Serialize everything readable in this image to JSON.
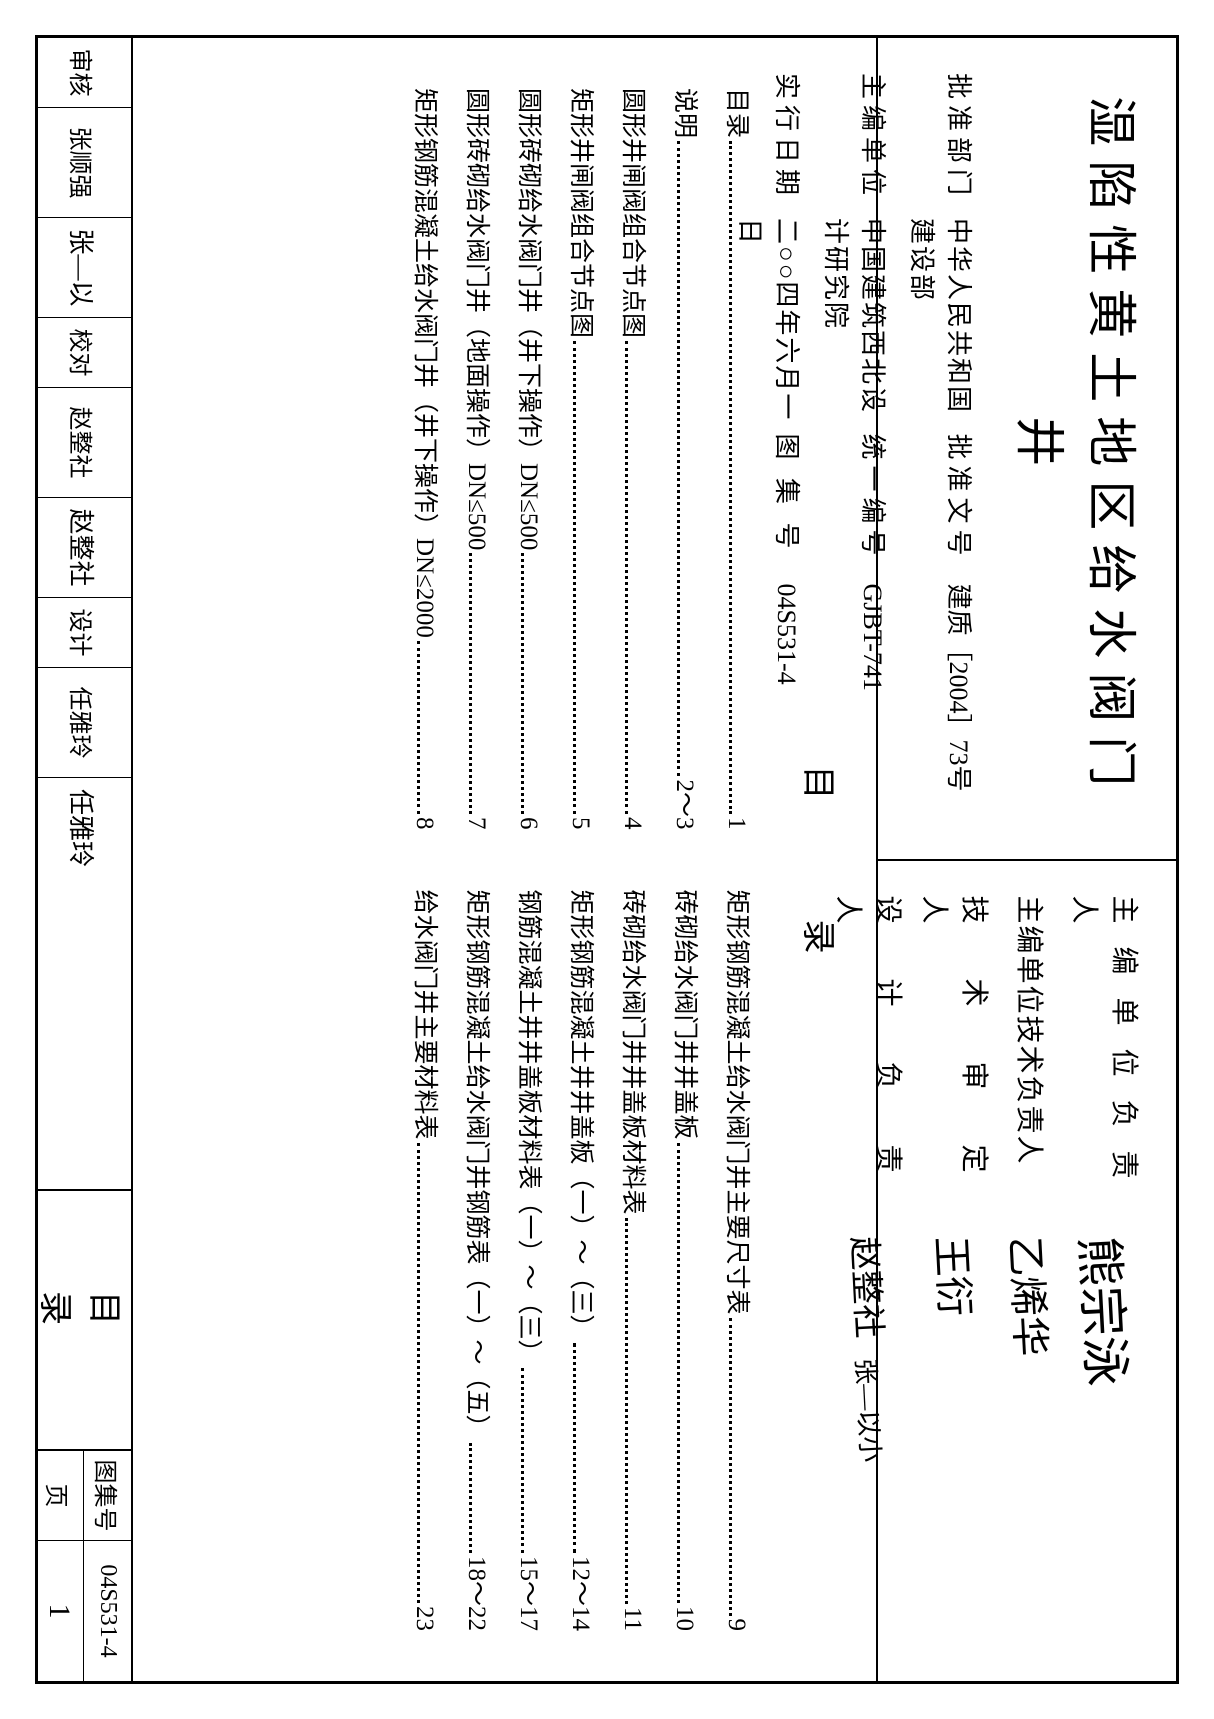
{
  "title": "湿陷性黄土地区给水阀门井",
  "info": {
    "approve_dept_label": "批准部门",
    "approve_dept": "中华人民共和国建设部",
    "approve_doc_label": "批准文号",
    "approve_doc": "建质［2004］73号",
    "editor_unit_label": "主编单位",
    "editor_unit": "中国建筑西北设计研究院",
    "unified_no_label": "统一编号",
    "unified_no": "GJBT-741",
    "effective_date_label": "实行日期",
    "effective_date": "二○○四年六月一日",
    "atlas_no_label": "图 集 号",
    "atlas_no": "04S531-4"
  },
  "signers": {
    "r1_label": "主 编 单 位 负 责 人",
    "r1_sig": "熊宗泳",
    "r2_label": "主编单位技术负责人",
    "r2_sig": "乙烯华",
    "r3_label": "技 术 审 定 人",
    "r3_sig": "王衍",
    "r4_label": "设 计 负 责 人",
    "r4_sig": "赵整社",
    "r4_sig2": "张—以小"
  },
  "toc_heading": "目录",
  "toc_left": [
    {
      "label": "目录",
      "page": "1"
    },
    {
      "label": "说明",
      "page": "2～3"
    },
    {
      "label": "圆形井闸阀组合节点图",
      "page": "4"
    },
    {
      "label": "矩形井闸阀组合节点图",
      "page": "5"
    },
    {
      "label": "圆形砖砌给水阀门井（井下操作）DN≤500",
      "page": "6"
    },
    {
      "label": "圆形砖砌给水阀门井（地面操作）DN≤500",
      "page": "7"
    },
    {
      "label": "矩形钢筋混凝土给水阀门井（井下操作）DN≤2000",
      "page": "8"
    }
  ],
  "toc_right": [
    {
      "label": "矩形钢筋混凝土给水阀门井主要尺寸表",
      "page": "9"
    },
    {
      "label": "砖砌给水阀门井井盖板",
      "page": "10"
    },
    {
      "label": "砖砌给水阀门井井盖板材料表",
      "page": "11"
    },
    {
      "label": "矩形钢筋混凝土井井盖板（一）～（三）",
      "page": "12～14"
    },
    {
      "label": "钢筋混凝土井井盖板材料表（一）～（三）",
      "page": "15～17"
    },
    {
      "label": "矩形钢筋混凝土给水阀门井钢筋表（一）～（五）",
      "page": "18～22"
    },
    {
      "label": "给水阀门井主要材料表",
      "page": "23"
    }
  ],
  "footer": {
    "review_label": "审核",
    "review_name": "张顺强",
    "review_sig": "张—以",
    "check_label": "校对",
    "check_name": "赵整社",
    "check_sig": "赵整社",
    "design_label": "设计",
    "design_name": "任雅玲",
    "design_sig": "任雅玲",
    "mid": "目录",
    "atlas_label": "图集号",
    "atlas_no": "04S531-4",
    "page_label": "页",
    "page_no": "1"
  }
}
